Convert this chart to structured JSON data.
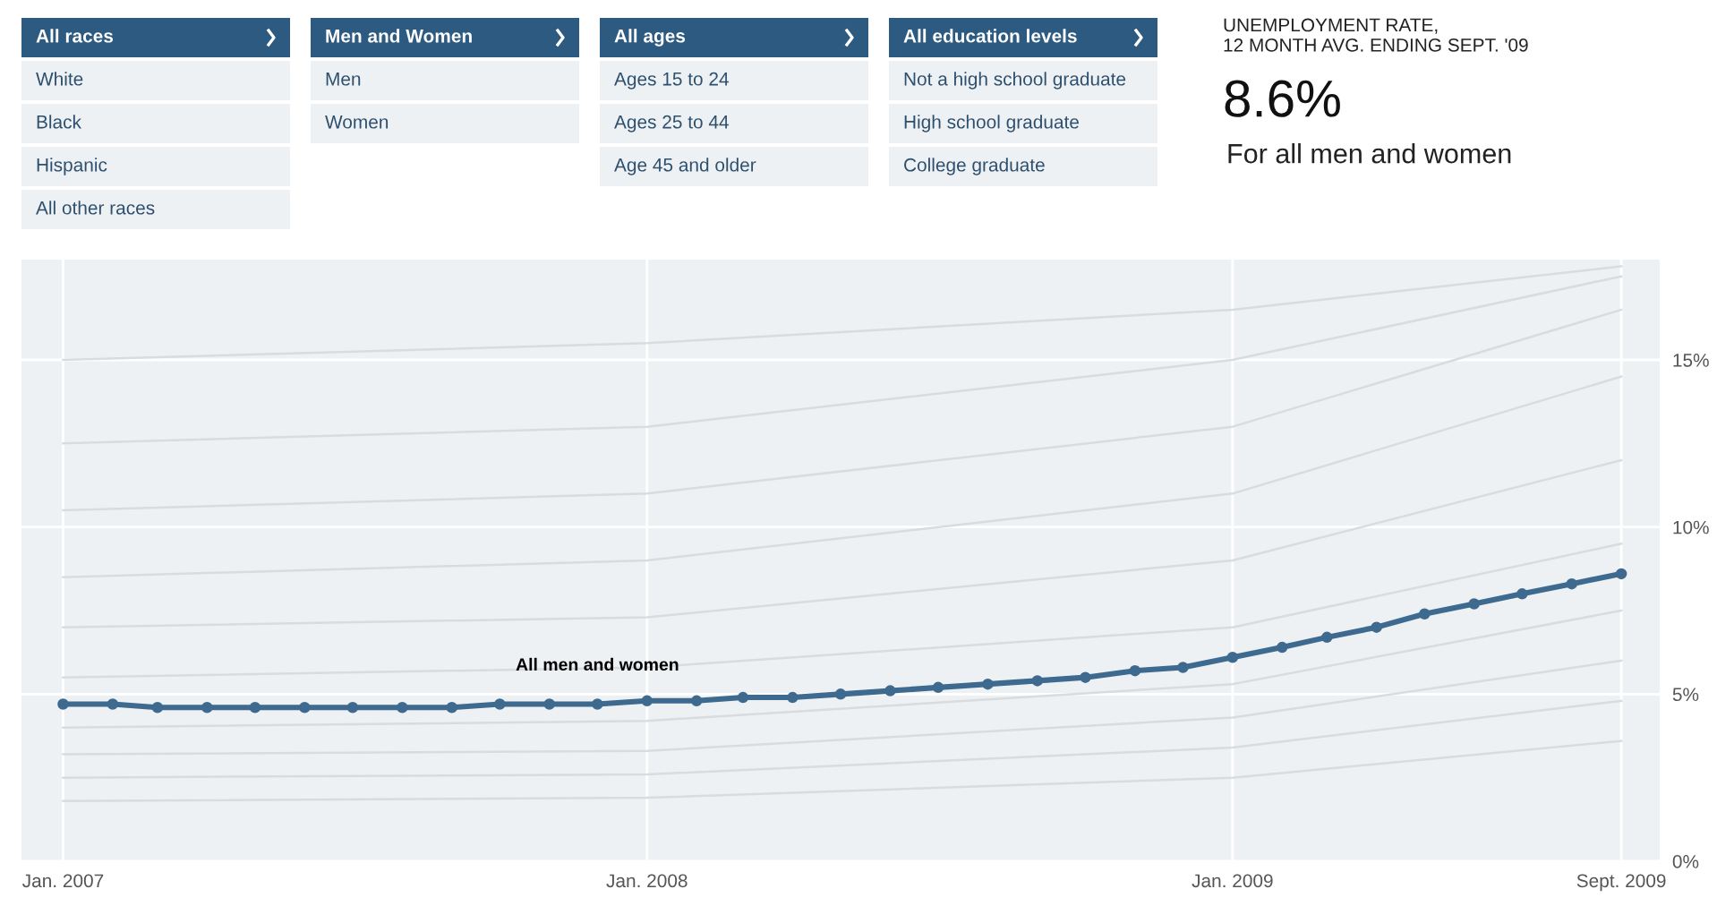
{
  "chart_data": [
    {
      "type": "other",
      "categories": [
        "All races",
        "Men and Women",
        "All ages",
        "All education levels"
      ],
      "annotations": [
        {
          "text": "White",
          "x": "All races"
        },
        {
          "text": "Black",
          "x": "All races"
        },
        {
          "text": "Hispanic",
          "x": "All races"
        },
        {
          "text": "All other races",
          "x": "All races"
        },
        {
          "text": "Men",
          "x": "Men and Women"
        },
        {
          "text": "Women",
          "x": "Men and Women"
        },
        {
          "text": "Ages 15 to 24",
          "x": "All ages"
        },
        {
          "text": "Ages 25 to 44",
          "x": "All ages"
        },
        {
          "text": "Age 45 and older",
          "x": "All ages"
        },
        {
          "text": "Not a high school graduate",
          "x": "All education levels"
        },
        {
          "text": "High school graduate",
          "x": "All education levels"
        },
        {
          "text": "College graduate",
          "x": "All education levels"
        }
      ]
    },
    {
      "type": "line",
      "title": "UNEMPLOYMENT RATE,\n12 MONTH AVG. ENDING SEPT. '09",
      "subtitle": "8.6%",
      "annotations": [
        "For all men and women",
        {
          "text": "All men and women",
          "x": "2007-12",
          "y": 5.6
        }
      ],
      "x": [
        "2007-01",
        "2007-02",
        "2007-03",
        "2007-04",
        "2007-05",
        "2007-06",
        "2007-07",
        "2007-08",
        "2007-09",
        "2007-10",
        "2007-11",
        "2007-12",
        "2008-01",
        "2008-02",
        "2008-03",
        "2008-04",
        "2008-05",
        "2008-06",
        "2008-07",
        "2008-08",
        "2008-09",
        "2008-10",
        "2008-11",
        "2008-12",
        "2009-01",
        "2009-02",
        "2009-03",
        "2009-04",
        "2009-05",
        "2009-06",
        "2009-07",
        "2009-08",
        "2009-09"
      ],
      "series": [
        {
          "color": "#d8dcdf",
          "marker": "none",
          "x": [
            "2007-01",
            "2008-01",
            "2009-01",
            "2009-09"
          ],
          "values": [
            1.8,
            1.9,
            2.5,
            3.6
          ]
        },
        {
          "color": "#d8dcdf",
          "marker": "none",
          "x": [
            "2007-01",
            "2008-01",
            "2009-01",
            "2009-09"
          ],
          "values": [
            2.5,
            2.6,
            3.4,
            4.8
          ]
        },
        {
          "color": "#d8dcdf",
          "marker": "none",
          "x": [
            "2007-01",
            "2008-01",
            "2009-01",
            "2009-09"
          ],
          "values": [
            3.2,
            3.3,
            4.3,
            6.0
          ]
        },
        {
          "color": "#d8dcdf",
          "marker": "none",
          "x": [
            "2007-01",
            "2008-01",
            "2009-01",
            "2009-09"
          ],
          "values": [
            4.0,
            4.2,
            5.3,
            7.5
          ]
        },
        {
          "color": "#d8dcdf",
          "marker": "none",
          "x": [
            "2007-01",
            "2008-01",
            "2009-01",
            "2009-09"
          ],
          "values": [
            5.5,
            5.8,
            7.0,
            9.5
          ]
        },
        {
          "color": "#d8dcdf",
          "marker": "none",
          "x": [
            "2007-01",
            "2008-01",
            "2009-01",
            "2009-09"
          ],
          "values": [
            7.0,
            7.3,
            9.0,
            12.0
          ]
        },
        {
          "color": "#d8dcdf",
          "marker": "none",
          "x": [
            "2007-01",
            "2008-01",
            "2009-01",
            "2009-09"
          ],
          "values": [
            8.5,
            9.0,
            11.0,
            14.5
          ]
        },
        {
          "color": "#d8dcdf",
          "marker": "none",
          "x": [
            "2007-01",
            "2008-01",
            "2009-01",
            "2009-09"
          ],
          "values": [
            10.5,
            11.0,
            13.0,
            16.5
          ]
        },
        {
          "color": "#d8dcdf",
          "marker": "none",
          "x": [
            "2007-01",
            "2008-01",
            "2009-01",
            "2009-09"
          ],
          "values": [
            12.5,
            13.0,
            15.0,
            17.5
          ]
        },
        {
          "color": "#d8dcdf",
          "marker": "none",
          "x": [
            "2007-01",
            "2008-01",
            "2009-01",
            "2009-09"
          ],
          "values": [
            15.0,
            15.5,
            16.5,
            17.8
          ]
        },
        {
          "color": "#3e6a8f",
          "marker": "circle",
          "values": [
            4.7,
            4.7,
            4.6,
            4.6,
            4.6,
            4.6,
            4.6,
            4.6,
            4.6,
            4.7,
            4.7,
            4.7,
            4.8,
            4.8,
            4.9,
            4.9,
            5.0,
            5.1,
            5.2,
            5.3,
            5.4,
            5.5,
            5.7,
            5.8,
            6.1,
            6.4,
            6.7,
            7.0,
            7.4,
            7.7,
            8.0,
            8.3,
            8.6
          ]
        }
      ],
      "xlim": [
        "2006-12-06",
        "2009-09-25"
      ],
      "xticks": [
        {
          "value": "2007-01",
          "label": "Jan. 2007"
        },
        {
          "value": "2008-01",
          "label": "Jan. 2008"
        },
        {
          "value": "2009-01",
          "label": "Jan. 2009"
        },
        {
          "value": "2009-09",
          "label": "Sept. 2009"
        }
      ],
      "ylim": [
        0,
        18
      ],
      "yticks": [
        {
          "value": 0,
          "label": "0%"
        },
        {
          "value": 5,
          "label": "5%"
        },
        {
          "value": 10,
          "label": "10%"
        },
        {
          "value": 15,
          "label": "15%"
        }
      ],
      "grid": true
    }
  ]
}
